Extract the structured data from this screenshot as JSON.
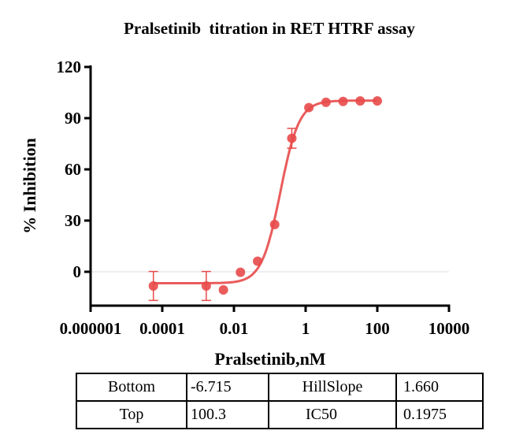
{
  "chart_data": {
    "type": "scatter",
    "title": "Pralsetinib  titration in RET HTRF assay",
    "xlabel": "Pralsetinib,nM",
    "ylabel": "% Inhibition",
    "xscale": "log",
    "xlim": [
      1e-06,
      10000
    ],
    "ylim": [
      -15,
      120
    ],
    "xticks": [
      "0.000001",
      "0.0001",
      "0.01",
      "1",
      "100",
      "10000"
    ],
    "xtick_values": [
      1e-06,
      0.0001,
      0.01,
      1,
      100,
      10000
    ],
    "yticks": [
      "0",
      "30",
      "60",
      "90",
      "120"
    ],
    "ytick_values": [
      0,
      30,
      60,
      90,
      120
    ],
    "color": "#e84a4a",
    "points": [
      {
        "x": 5.65e-05,
        "y": -8.3,
        "err": 8.5
      },
      {
        "x": 0.00169,
        "y": -8.3,
        "err": 8.5
      },
      {
        "x": 0.00508,
        "y": -10.6,
        "err": 0
      },
      {
        "x": 0.0152,
        "y": -0.3,
        "err": 0
      },
      {
        "x": 0.0457,
        "y": 6.2,
        "err": 0
      },
      {
        "x": 0.137,
        "y": 27.7,
        "err": 0
      },
      {
        "x": 0.412,
        "y": 78.2,
        "err": 5.8
      },
      {
        "x": 1.23,
        "y": 96.2,
        "err": 0
      },
      {
        "x": 3.7,
        "y": 99.3,
        "err": 0
      },
      {
        "x": 11.1,
        "y": 99.8,
        "err": 0
      },
      {
        "x": 33.3,
        "y": 100.1,
        "err": 0
      },
      {
        "x": 100,
        "y": 100.1,
        "err": 0
      }
    ],
    "fit": {
      "bottom": -6.715,
      "top": 100.3,
      "ic50": 0.1975,
      "hillslope": 1.66
    }
  },
  "table": {
    "rows": [
      [
        "Bottom",
        "-6.715",
        "HillSlope",
        "1.660"
      ],
      [
        "Top",
        "100.3",
        "IC50",
        "0.1975"
      ]
    ]
  }
}
